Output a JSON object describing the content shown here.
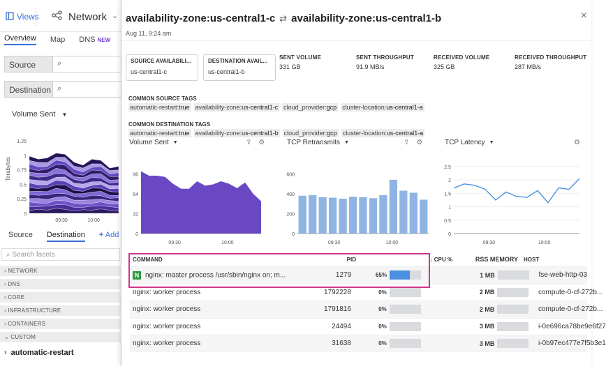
{
  "sidebar": {
    "views_label": "Views",
    "app_title": "Network",
    "tabs": [
      "Overview",
      "Map",
      "DNS"
    ],
    "dns_badge": "NEW",
    "source_label": "Source",
    "destination_label": "Destination",
    "metric_select": "Volume Sent",
    "mini_chart": {
      "y_label": "Terabytes",
      "y_ticks": [
        "1.25",
        "1",
        "0.75",
        "0.5",
        "0.25",
        "0"
      ],
      "x_ticks": [
        "09:30",
        "10:00"
      ]
    },
    "facet_tabs": [
      "Source",
      "Destination"
    ],
    "add_label": "Add",
    "search_placeholder": "Search facets",
    "facet_groups": [
      "NETWORK",
      "DNS",
      "CORE",
      "INFRASTRUCTURE",
      "CONTAINERS",
      "CUSTOM"
    ],
    "selected_facet": "automatic-restart"
  },
  "panel": {
    "title_source": "availability-zone:us-central1-c",
    "title_dest": "availability-zone:us-central1-b",
    "arrow": "⇄",
    "date": "Aug 11, 9:24 am",
    "close": "×",
    "source_box": {
      "label": "SOURCE AVAILABILI...",
      "value": "us-central1-c"
    },
    "dest_box": {
      "label": "DESTINATION AVAIL...",
      "value": "us-central1-b"
    },
    "stats": [
      {
        "label": "SENT VOLUME",
        "value": "331 GB"
      },
      {
        "label": "SENT THROUGHPUT",
        "value": "91.9 MB/s"
      },
      {
        "label": "RECEIVED VOLUME",
        "value": "325 GB"
      },
      {
        "label": "RECEIVED THROUGHPUT",
        "value": "287 MB/s"
      }
    ],
    "common_source_title": "COMMON SOURCE TAGS",
    "common_source_tags": [
      {
        "k": "automatic-restart:",
        "v": "true"
      },
      {
        "k": "availability-zone:",
        "v": "us-central1-c"
      },
      {
        "k": "cloud_provider:",
        "v": "gcp"
      },
      {
        "k": "cluster-location:",
        "v": "us-central1-a"
      }
    ],
    "common_dest_title": "COMMON DESTINATION TAGS",
    "common_dest_tags": [
      {
        "k": "automatic-restart:",
        "v": "true"
      },
      {
        "k": "availability-zone:",
        "v": "us-central1-b"
      },
      {
        "k": "cloud_provider:",
        "v": "gcp"
      },
      {
        "k": "cluster-location:",
        "v": "us-central1-a"
      }
    ]
  },
  "charts_meta": {
    "volume_sent_title": "Volume Sent",
    "tcp_retransmits_title": "TCP Retransmits",
    "tcp_latency_title": "TCP Latency"
  },
  "chart_data": [
    {
      "type": "area",
      "title": "Volume Sent",
      "x": [
        "09:24",
        "09:26",
        "09:28",
        "09:30",
        "09:32",
        "09:34",
        "09:36",
        "09:38",
        "09:40",
        "09:42",
        "09:44",
        "09:46",
        "09:48",
        "09:50",
        "09:52",
        "09:54"
      ],
      "x_ticks": [
        "09:30",
        "10:00"
      ],
      "y_ticks": [
        "96",
        "64",
        "32",
        "0"
      ],
      "ylim": [
        0,
        112
      ],
      "values": [
        100,
        93,
        93,
        91,
        80,
        72,
        72,
        84,
        77,
        79,
        84,
        80,
        73,
        82,
        64,
        52
      ],
      "color": "#6a48c4"
    },
    {
      "type": "bar",
      "title": "TCP Retransmits",
      "x_ticks": [
        "09:30",
        "10:00"
      ],
      "y_ticks": [
        "600",
        "400",
        "200",
        "0"
      ],
      "ylim": [
        0,
        700
      ],
      "values": [
        380,
        385,
        365,
        360,
        350,
        370,
        365,
        355,
        385,
        540,
        430,
        410,
        340
      ],
      "color": "#8fb4e3"
    },
    {
      "type": "line",
      "title": "TCP Latency",
      "x_ticks": [
        "09:30",
        "10:00"
      ],
      "y_ticks": [
        "2.5",
        "2",
        "1.5",
        "1",
        "0.5",
        "0"
      ],
      "ylim": [
        0,
        2.6
      ],
      "values": [
        1.7,
        1.85,
        1.8,
        1.65,
        1.25,
        1.55,
        1.38,
        1.35,
        1.6,
        1.15,
        1.7,
        1.65,
        2.05
      ],
      "color": "#4a8fe0"
    }
  ],
  "process_table": {
    "headers": {
      "command": "COMMAND",
      "pid": "PID",
      "cpu": "↓ CPU %",
      "rss": "RSS MEMORY",
      "host": "HOST"
    },
    "rows": [
      {
        "command": "nginx: master process /usr/sbin/nginx on; m...",
        "pid": "1279",
        "cpu": "65%",
        "cpu_fill": 0.65,
        "mem": "1 MB",
        "host": "fse-web-http-03",
        "icon": "N"
      },
      {
        "command": "nginx: worker process",
        "pid": "1792228",
        "cpu": "0%",
        "cpu_fill": 0,
        "mem": "2 MB",
        "host": "compute-0-cf-272b..."
      },
      {
        "command": "nginx: worker process",
        "pid": "1791816",
        "cpu": "0%",
        "cpu_fill": 0,
        "mem": "2 MB",
        "host": "compute-0-cf-272b..."
      },
      {
        "command": "nginx: worker process",
        "pid": "24494",
        "cpu": "0%",
        "cpu_fill": 0,
        "mem": "3 MB",
        "host": "i-0e696ca78be9e6f27"
      },
      {
        "command": "nginx: worker process",
        "pid": "31638",
        "cpu": "0%",
        "cpu_fill": 0,
        "mem": "3 MB",
        "host": "i-0b97ec477e7f5b3e1"
      }
    ]
  }
}
